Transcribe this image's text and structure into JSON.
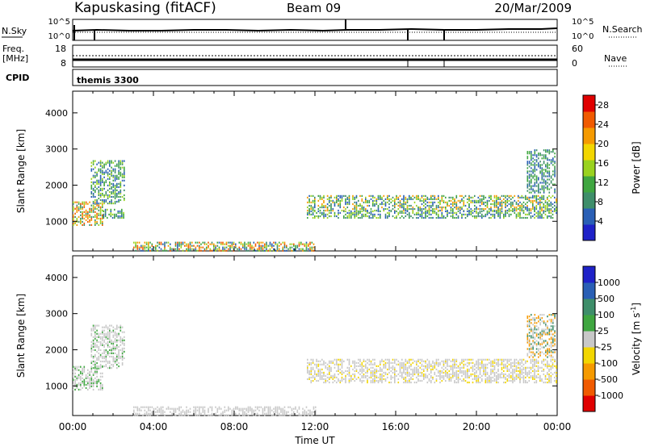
{
  "header": {
    "station": "Kapuskasing (fitACF)",
    "beam": "Beam 09",
    "date": "20/Mar/2009"
  },
  "top_panels": {
    "nsky_label": "N.Sky",
    "nsearch_label": "N.Search",
    "nsky_ticks": [
      "10^5",
      "10^0"
    ],
    "nsearch_ticks": [
      "10^5",
      "10^0"
    ],
    "freq_label": "Freq.",
    "freq_unit": "[MHz]",
    "freq_ticks": [
      "18",
      "8"
    ],
    "nave_label": "Nave",
    "nave_ticks": [
      "60",
      "0"
    ],
    "cpid_label": "CPID",
    "cpid_value": "themis 3300"
  },
  "colors": {
    "power": [
      "#1f22c8",
      "#2a5fb5",
      "#3e8e6a",
      "#3fa640",
      "#9ad21f",
      "#f2d600",
      "#f59a00",
      "#f05a00",
      "#e00000"
    ],
    "velocity": [
      "#e00000",
      "#f05a00",
      "#f59a00",
      "#f2d600",
      "#c8c8c8",
      "#3fa640",
      "#3e8e6a",
      "#2a5fb5",
      "#1f22c8"
    ]
  },
  "chart_data": [
    {
      "type": "heatmap",
      "name": "power",
      "ylabel": "Slant Range [km]",
      "yticks": [
        "1000",
        "2000",
        "3000",
        "4000"
      ],
      "ylim": [
        180,
        4600
      ],
      "xlim": [
        0,
        24
      ],
      "colorbar": {
        "label": "Power [dB]",
        "ticks": [
          "4",
          "8",
          "12",
          "16",
          "20",
          "24",
          "28"
        ],
        "range": [
          0,
          30
        ]
      },
      "bands": [
        {
          "t0": 0.0,
          "t1": 1.5,
          "r0": 900,
          "r1": 1550,
          "values": [
            8,
            16,
            20,
            24
          ]
        },
        {
          "t0": 0.9,
          "t1": 2.6,
          "r0": 1500,
          "r1": 2700,
          "values": [
            4,
            8,
            12,
            16
          ]
        },
        {
          "t0": 1.5,
          "t1": 2.5,
          "r0": 1100,
          "r1": 1350,
          "values": [
            4,
            8,
            12,
            16
          ]
        },
        {
          "t0": 11.6,
          "t1": 24.0,
          "r0": 1300,
          "r1": 1750,
          "values": [
            4,
            8,
            12,
            16,
            20
          ]
        },
        {
          "t0": 11.6,
          "t1": 24.0,
          "r0": 1100,
          "r1": 1300,
          "values": [
            4,
            8,
            12,
            16
          ]
        },
        {
          "t0": 22.5,
          "t1": 23.9,
          "r0": 1800,
          "r1": 3000,
          "values": [
            4,
            8,
            12
          ]
        },
        {
          "t0": 3.0,
          "t1": 12.0,
          "r0": 190,
          "r1": 420,
          "values": [
            4,
            8,
            12,
            16,
            20,
            24
          ]
        }
      ]
    },
    {
      "type": "heatmap",
      "name": "velocity",
      "ylabel": "Slant Range [km]",
      "yticks": [
        "1000",
        "2000",
        "3000",
        "4000"
      ],
      "ylim": [
        180,
        4600
      ],
      "xlim": [
        0,
        24
      ],
      "xticks": [
        "00:00",
        "04:00",
        "08:00",
        "12:00",
        "16:00",
        "20:00",
        "00:00"
      ],
      "xlabel": "Time UT",
      "colorbar": {
        "label": "Velocity [m s",
        "label_sup": "-1",
        "label_end": "]",
        "ticks": [
          "1000",
          "500",
          "100",
          "25",
          "-25",
          "-100",
          "-500",
          "-1000"
        ]
      },
      "bands": [
        {
          "t0": 0.0,
          "t1": 1.5,
          "r0": 900,
          "r1": 1550,
          "values": [
            0,
            0,
            0,
            100
          ]
        },
        {
          "t0": 0.9,
          "t1": 2.6,
          "r0": 1500,
          "r1": 2700,
          "values": [
            0,
            0,
            0,
            50
          ]
        },
        {
          "t0": 11.6,
          "t1": 24.0,
          "r0": 1100,
          "r1": 1750,
          "values": [
            0,
            0,
            0,
            0,
            -50
          ]
        },
        {
          "t0": 22.5,
          "t1": 23.9,
          "r0": 1800,
          "r1": 3000,
          "values": [
            0,
            -100,
            150
          ]
        },
        {
          "t0": 3.0,
          "t1": 12.0,
          "r0": 190,
          "r1": 420,
          "values": [
            0,
            0,
            0
          ]
        }
      ]
    }
  ]
}
